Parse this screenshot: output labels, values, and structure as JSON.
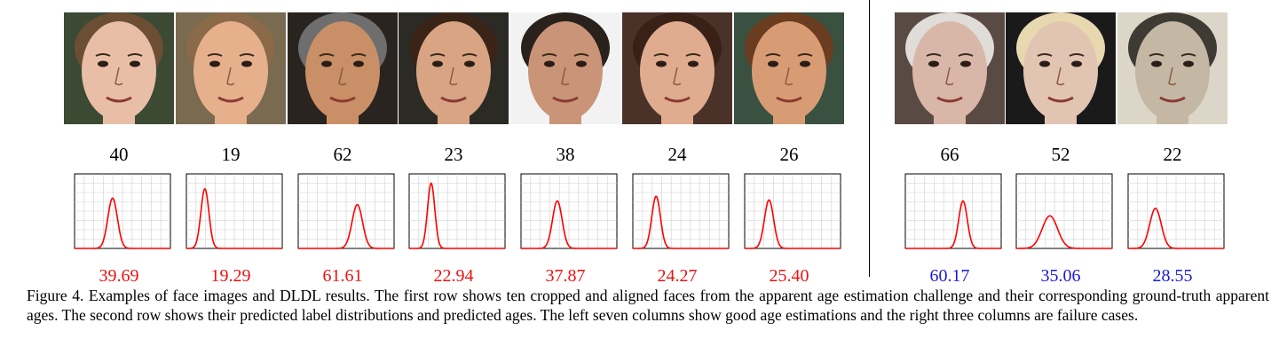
{
  "caption": "Figure 4.  Examples of face images and DLDL results. The first row shows ten cropped and aligned faces from the apparent age estimation challenge and their corresponding ground-truth apparent ages. The second row shows their predicted label distributions and predicted ages. The left seven columns show good age estimations and the right three columns are failure cases.",
  "colors": {
    "success": "#ee1111",
    "failure": "#1a1adc",
    "curve": "#ff0000"
  },
  "columns": [
    {
      "gt": "40",
      "pred": "39.69",
      "status": "success",
      "face": {
        "skin": "#e8bfa6",
        "hair": "#6b4e34",
        "bg": "#3c4a34"
      }
    },
    {
      "gt": "19",
      "pred": "19.29",
      "status": "success",
      "face": {
        "skin": "#e6b08c",
        "hair": "#8a6a48",
        "bg": "#7a6a50"
      }
    },
    {
      "gt": "62",
      "pred": "61.61",
      "status": "success",
      "face": {
        "skin": "#c98f66",
        "hair": "#6e6e6e",
        "bg": "#2a2420"
      }
    },
    {
      "gt": "23",
      "pred": "22.94",
      "status": "success",
      "face": {
        "skin": "#d8a484",
        "hair": "#3a2418",
        "bg": "#2c2a24"
      }
    },
    {
      "gt": "38",
      "pred": "37.87",
      "status": "success",
      "face": {
        "skin": "#c99478",
        "hair": "#2a211c",
        "bg": "#f2f2f2"
      }
    },
    {
      "gt": "24",
      "pred": "24.27",
      "status": "success",
      "face": {
        "skin": "#e0ac90",
        "hair": "#3a2118",
        "bg": "#4a3228"
      }
    },
    {
      "gt": "26",
      "pred": "25.40",
      "status": "success",
      "face": {
        "skin": "#d89c74",
        "hair": "#6a3c20",
        "bg": "#3a5040"
      }
    },
    {
      "gt": "66",
      "pred": "60.17",
      "status": "failure",
      "face": {
        "skin": "#d9b7a8",
        "hair": "#e0dcd8",
        "bg": "#5a4a44"
      }
    },
    {
      "gt": "52",
      "pred": "35.06",
      "status": "failure",
      "face": {
        "skin": "#e2c4b2",
        "hair": "#e8d8b0",
        "bg": "#1a1a1a"
      }
    },
    {
      "gt": "22",
      "pred": "28.55",
      "status": "failure",
      "face": {
        "skin": "#c4b8a4",
        "hair": "#3e3a34",
        "bg": "#dcd6c8"
      }
    }
  ],
  "chart_data": [
    {
      "type": "line",
      "peak_age": 39.69,
      "peak_prob": 0.054,
      "spread": 5
    },
    {
      "type": "line",
      "peak_age": 19.29,
      "peak_prob": 0.064,
      "spread": 4.2
    },
    {
      "type": "line",
      "peak_age": 61.61,
      "peak_prob": 0.047,
      "spread": 5.5
    },
    {
      "type": "line",
      "peak_age": 22.94,
      "peak_prob": 0.07,
      "spread": 3.8
    },
    {
      "type": "line",
      "peak_age": 37.87,
      "peak_prob": 0.051,
      "spread": 5
    },
    {
      "type": "line",
      "peak_age": 24.27,
      "peak_prob": 0.056,
      "spread": 4.5
    },
    {
      "type": "line",
      "peak_age": 25.4,
      "peak_prob": 0.052,
      "spread": 4.8
    },
    {
      "type": "line",
      "peak_age": 60.17,
      "peak_prob": 0.051,
      "spread": 4.5
    },
    {
      "type": "line",
      "peak_age": 35.06,
      "peak_prob": 0.035,
      "spread": 8
    },
    {
      "type": "line",
      "peak_age": 28.55,
      "peak_prob": 0.043,
      "spread": 6
    }
  ]
}
